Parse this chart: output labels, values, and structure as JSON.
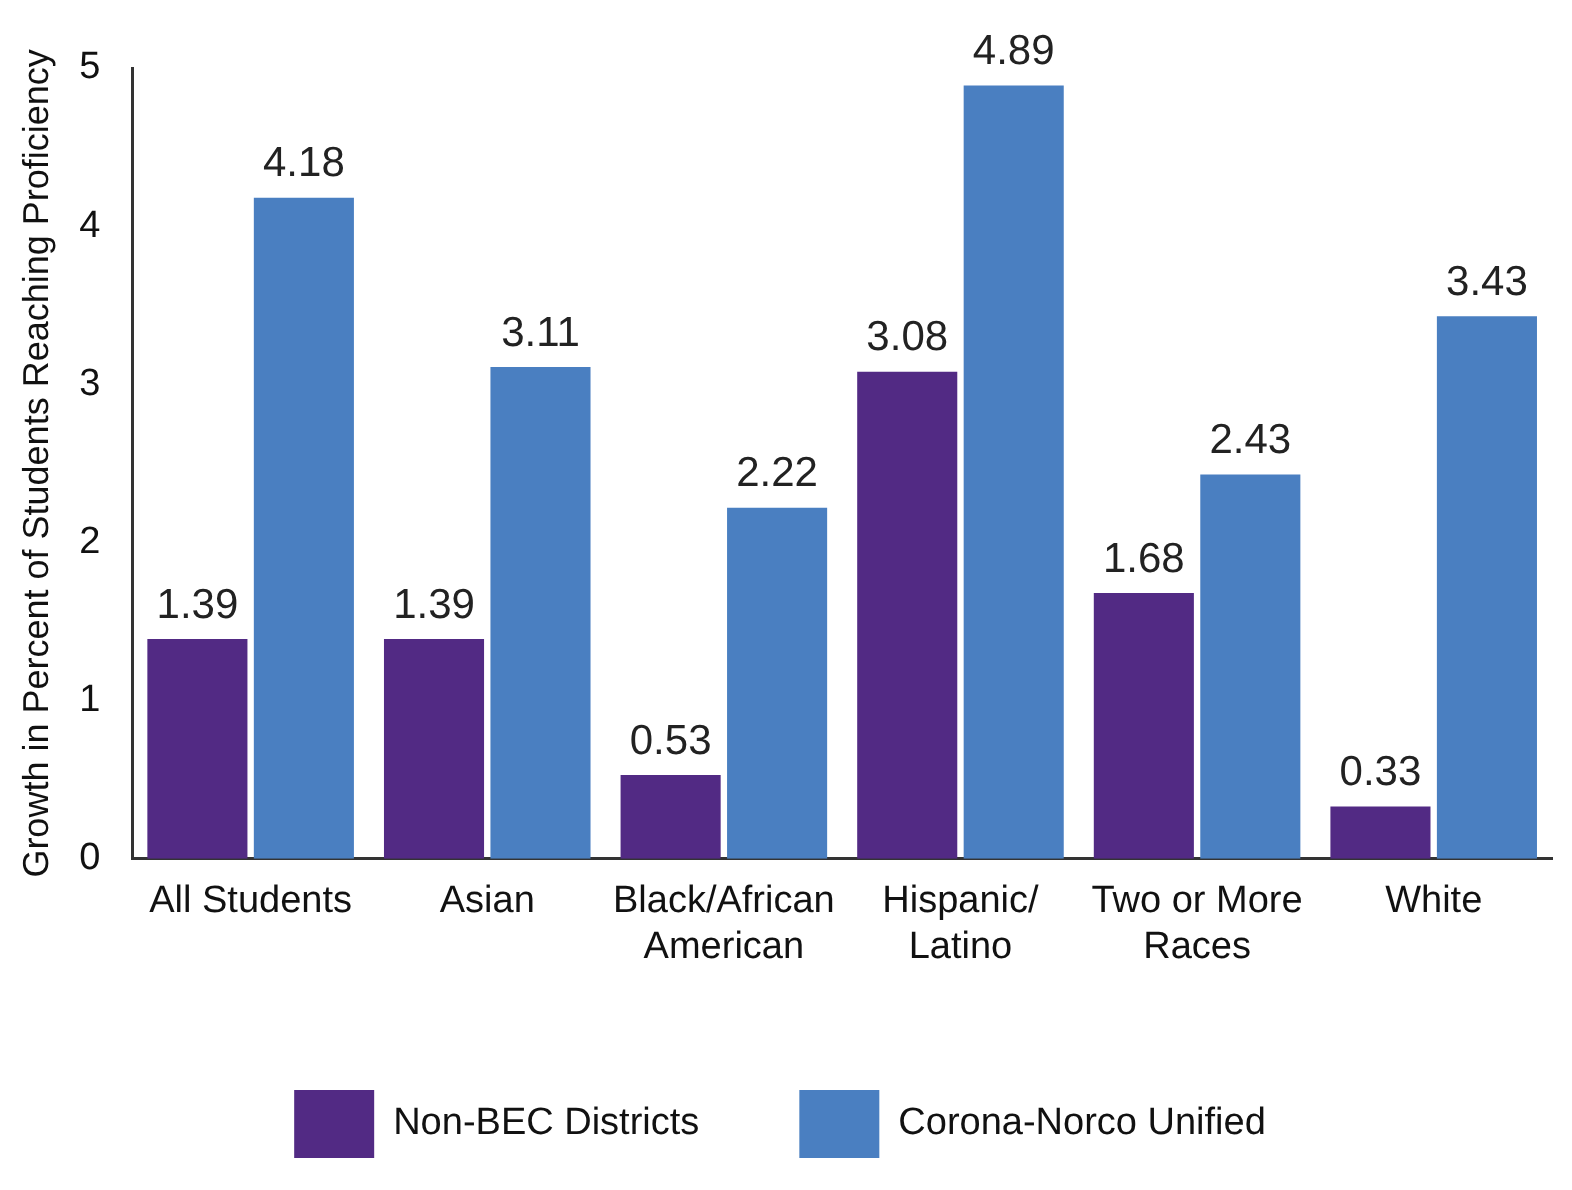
{
  "chart_data": {
    "type": "bar",
    "ylabel": "Growth in Percent of Students Reaching Proficiency",
    "categories": [
      "All Students",
      "Asian",
      "Black/African American",
      "Hispanic/Latino",
      "Two or More Races",
      "White"
    ],
    "series": [
      {
        "name": "Non-BEC Districts",
        "color": "#522a84",
        "values": [
          1.39,
          1.39,
          0.53,
          3.08,
          1.68,
          0.33
        ]
      },
      {
        "name": "Corona-Norco Unified",
        "color": "#4a7fc1",
        "values": [
          4.18,
          3.11,
          2.22,
          4.89,
          2.43,
          3.43
        ]
      }
    ],
    "ylim": [
      0,
      5
    ],
    "yticks": [
      0,
      1,
      2,
      3,
      4,
      5
    ],
    "grid": false,
    "legend": "bottom",
    "data_labels": true
  }
}
